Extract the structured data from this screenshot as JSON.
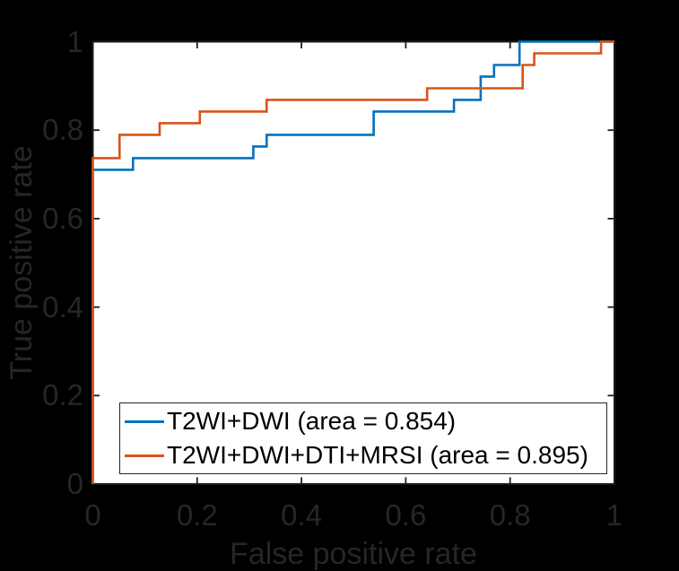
{
  "colors": {
    "figure_bg": "#000000",
    "axes_bg": "#FFFFFF",
    "axis_line": "#1C1C1C",
    "axis_text": "#262626",
    "legend_bg": "#FFFFFF",
    "legend_border": "#262626",
    "legend_text": "#000000",
    "series1": "#0072BD",
    "series2": "#D95319"
  },
  "chart_data": {
    "type": "line",
    "subtype": "roc-step-curves",
    "title": "",
    "xlabel": "False positive rate",
    "ylabel": "True positive rate",
    "xlim": [
      0,
      1
    ],
    "ylim": [
      0,
      1
    ],
    "x_ticks": [
      "0",
      "0.2",
      "0.4",
      "0.6",
      "0.8",
      "1"
    ],
    "y_ticks": [
      "0",
      "0.2",
      "0.4",
      "0.6",
      "0.8",
      "1"
    ],
    "grid": false,
    "legend_position": "bottom-left-inside",
    "series": [
      {
        "name": "T2WI+DWI (area = 0.854)",
        "area": 0.854,
        "color": "#0072BD",
        "points": [
          [
            0,
            0
          ],
          [
            0,
            0.7105
          ],
          [
            0.077,
            0.7105
          ],
          [
            0.077,
            0.7368
          ],
          [
            0.3077,
            0.7368
          ],
          [
            0.3077,
            0.7632
          ],
          [
            0.3333,
            0.7632
          ],
          [
            0.3333,
            0.7895
          ],
          [
            0.5385,
            0.7895
          ],
          [
            0.5385,
            0.8421
          ],
          [
            0.6923,
            0.8421
          ],
          [
            0.6923,
            0.8684
          ],
          [
            0.7436,
            0.8684
          ],
          [
            0.7436,
            0.9211
          ],
          [
            0.7692,
            0.9211
          ],
          [
            0.7692,
            0.9474
          ],
          [
            0.818,
            0.9474
          ],
          [
            0.818,
            1
          ],
          [
            1,
            1
          ]
        ]
      },
      {
        "name": "T2WI+DWI+DTI+MRSI (area = 0.895)",
        "area": 0.895,
        "color": "#D95319",
        "points": [
          [
            0,
            0
          ],
          [
            0,
            0.7368
          ],
          [
            0.0513,
            0.7368
          ],
          [
            0.0513,
            0.7895
          ],
          [
            0.1282,
            0.7895
          ],
          [
            0.1282,
            0.8158
          ],
          [
            0.2051,
            0.8158
          ],
          [
            0.2051,
            0.8421
          ],
          [
            0.3333,
            0.8421
          ],
          [
            0.3333,
            0.8684
          ],
          [
            0.641,
            0.8684
          ],
          [
            0.641,
            0.8947
          ],
          [
            0.824,
            0.8947
          ],
          [
            0.824,
            0.9474
          ],
          [
            0.8462,
            0.9474
          ],
          [
            0.8462,
            0.9737
          ],
          [
            0.9744,
            0.9737
          ],
          [
            0.9744,
            1
          ],
          [
            1,
            1
          ]
        ]
      }
    ]
  }
}
